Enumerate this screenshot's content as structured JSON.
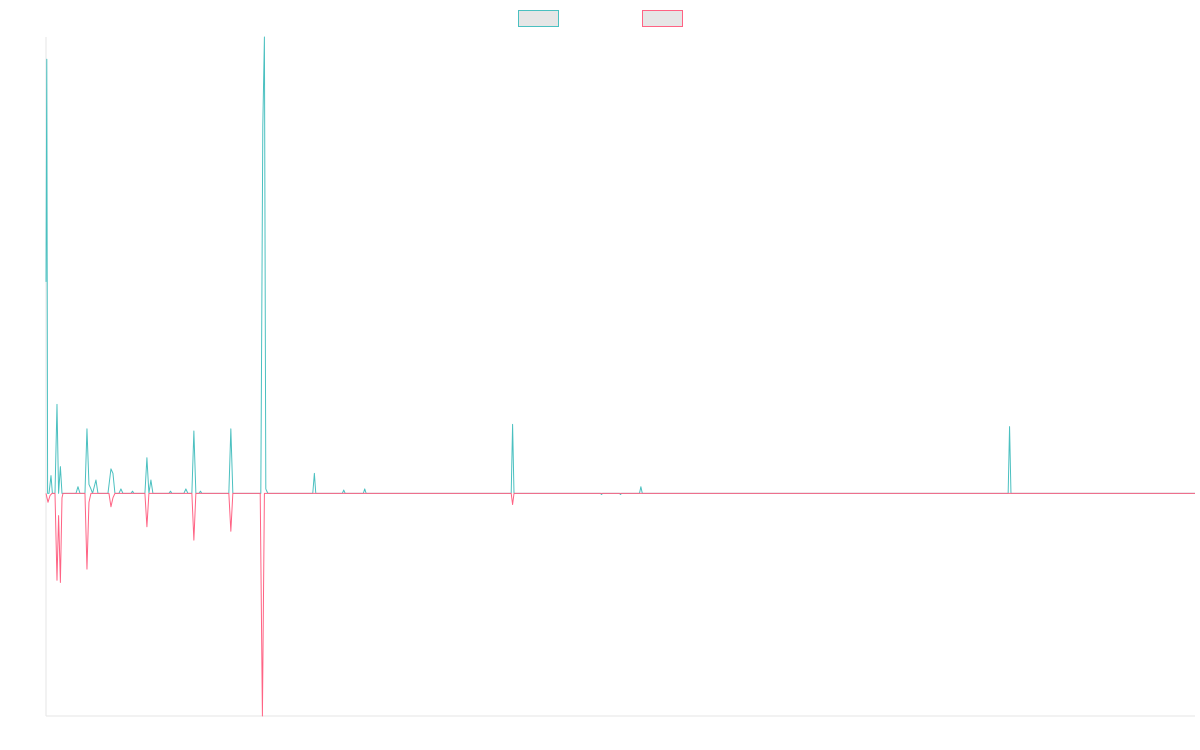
{
  "chart_data": {
    "type": "line",
    "title": "",
    "xlabel": "",
    "ylabel": "",
    "grid": false,
    "legend_position": "top-center",
    "xlim": [
      0,
      575
    ],
    "ylim": [
      -1,
      2.05
    ],
    "x_tick_labels": [],
    "y_tick_labels": [],
    "series": [
      {
        "color": "#4bc0c0",
        "fill": "#e6e6e6",
        "points": [
          [
            0,
            0.95
          ],
          [
            0.4,
            1.95
          ],
          [
            0.8,
            0
          ],
          [
            1.5,
            0
          ],
          [
            2.5,
            0.08
          ],
          [
            3.2,
            0.0
          ],
          [
            4.5,
            0.0
          ],
          [
            5.5,
            0.4
          ],
          [
            6.3,
            0.0
          ],
          [
            7.2,
            0.12
          ],
          [
            8,
            0.0
          ],
          [
            15,
            0.0
          ],
          [
            16,
            0.03
          ],
          [
            17,
            0.0
          ],
          [
            19.5,
            0.0
          ],
          [
            20.5,
            0.29
          ],
          [
            21.5,
            0.04
          ],
          [
            22.5,
            0.02
          ],
          [
            23.3,
            0.0
          ],
          [
            25,
            0.06
          ],
          [
            26,
            0.0
          ],
          [
            31,
            0.0
          ],
          [
            32.5,
            0.11
          ],
          [
            33.5,
            0.09
          ],
          [
            34.5,
            0.0
          ],
          [
            36.5,
            0.0
          ],
          [
            37.5,
            0.02
          ],
          [
            38.5,
            0.0
          ],
          [
            42.5,
            0.0
          ],
          [
            43.3,
            0.01
          ],
          [
            44,
            0.0
          ],
          [
            49.5,
            0.0
          ],
          [
            50.5,
            0.16
          ],
          [
            51.5,
            0.0
          ],
          [
            52.5,
            0.06
          ],
          [
            53.5,
            0.0
          ],
          [
            61.5,
            0.0
          ],
          [
            62.3,
            0.01
          ],
          [
            63,
            0.0
          ],
          [
            69,
            0.0
          ],
          [
            70,
            0.02
          ],
          [
            71,
            0.0
          ],
          [
            73,
            0.0
          ],
          [
            74,
            0.28
          ],
          [
            75,
            0.0
          ],
          [
            76.5,
            0.0
          ],
          [
            77.3,
            0.01
          ],
          [
            78,
            0.0
          ],
          [
            91.5,
            0.0
          ],
          [
            92.5,
            0.29
          ],
          [
            93.5,
            0.0
          ],
          [
            107.5,
            0.0
          ],
          [
            108.5,
            1.65
          ],
          [
            109.3,
            2.05
          ],
          [
            110,
            0.02
          ],
          [
            111,
            0.0
          ],
          [
            133.5,
            0.0
          ],
          [
            134.3,
            0.09
          ],
          [
            135,
            0.0
          ],
          [
            148.3,
            0.0
          ],
          [
            149,
            0.015
          ],
          [
            149.7,
            0.0
          ],
          [
            158.8,
            0.0
          ],
          [
            159.5,
            0.02
          ],
          [
            160.2,
            0.0
          ],
          [
            232.8,
            0.0
          ],
          [
            233.5,
            0.31
          ],
          [
            234.2,
            0.0
          ],
          [
            277.5,
            0.0
          ],
          [
            278,
            -0.005
          ],
          [
            278.5,
            0.0
          ],
          [
            287,
            0.0
          ],
          [
            287.5,
            -0.005
          ],
          [
            288,
            0.0
          ],
          [
            297,
            0.0
          ],
          [
            297.7,
            0.03
          ],
          [
            298.4,
            0.0
          ],
          [
            481.5,
            0.0
          ],
          [
            482.2,
            0.3
          ],
          [
            482.9,
            0.0
          ],
          [
            575,
            0.0
          ]
        ]
      },
      {
        "color": "#ff6384",
        "fill": "#e6e6e6",
        "points": [
          [
            0,
            0.0
          ],
          [
            1,
            -0.04
          ],
          [
            2,
            -0.01
          ],
          [
            3,
            0.0
          ],
          [
            4.5,
            0.0
          ],
          [
            5.5,
            -0.39
          ],
          [
            6.3,
            -0.1
          ],
          [
            7.2,
            -0.4
          ],
          [
            8,
            -0.02
          ],
          [
            8.5,
            0.0
          ],
          [
            19.5,
            0.0
          ],
          [
            20.5,
            -0.34
          ],
          [
            21.5,
            -0.04
          ],
          [
            22.5,
            0.0
          ],
          [
            31.5,
            0.0
          ],
          [
            32.5,
            -0.06
          ],
          [
            33.5,
            -0.02
          ],
          [
            34.5,
            0.0
          ],
          [
            49.5,
            0.0
          ],
          [
            50.5,
            -0.15
          ],
          [
            51.5,
            0.0
          ],
          [
            73,
            0.0
          ],
          [
            74,
            -0.21
          ],
          [
            75,
            0.0
          ],
          [
            91.5,
            0.0
          ],
          [
            92.5,
            -0.17
          ],
          [
            93.5,
            0.0
          ],
          [
            107.2,
            0.0
          ],
          [
            108.3,
            -1.0
          ],
          [
            109.3,
            0.0
          ],
          [
            232.8,
            0.0
          ],
          [
            233.5,
            -0.05
          ],
          [
            234.2,
            0.0
          ],
          [
            575,
            0.0
          ]
        ]
      }
    ]
  }
}
